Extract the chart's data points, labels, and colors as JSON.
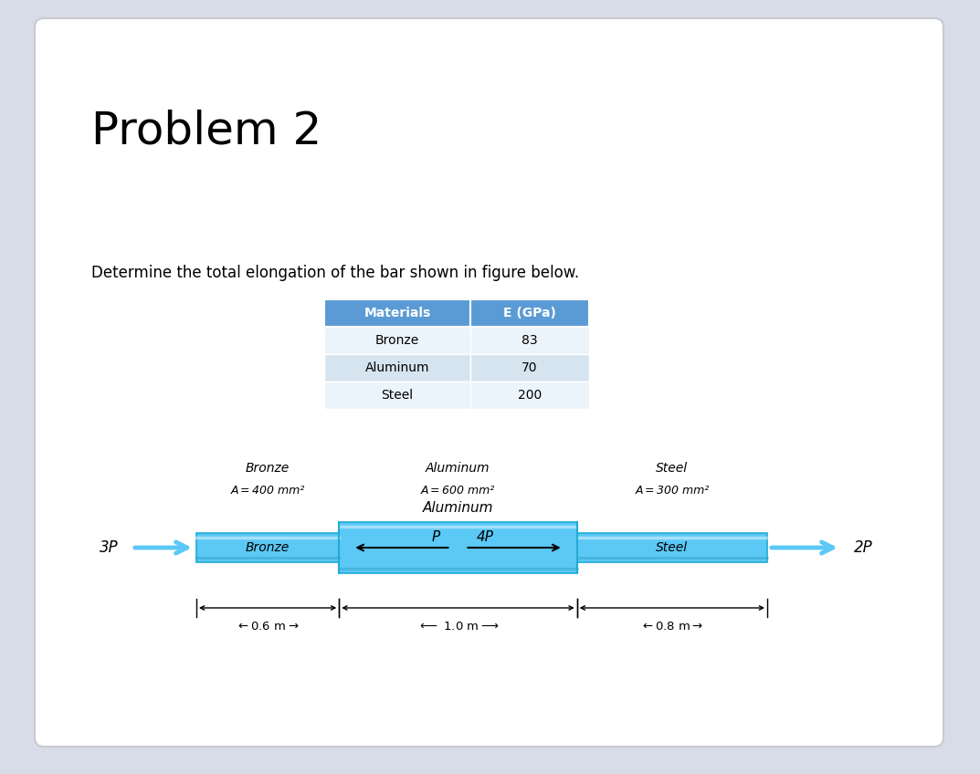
{
  "title": "Problem 2",
  "subtitle": "Determine the total elongation of the bar shown in figure below.",
  "table_headers": [
    "Materials",
    "E (GPa)"
  ],
  "table_rows": [
    [
      "Bronze",
      "83"
    ],
    [
      "Aluminum",
      "70"
    ],
    [
      "Steel",
      "200"
    ]
  ],
  "table_header_bg": "#5B9BD5",
  "table_row_bg_even": "#D6E4F0",
  "table_row_bg_odd": "#EBF4FA",
  "bar_face": "#5BC8F5",
  "bar_edge": "#1EACD6",
  "background_color": "#D8DCE8",
  "card_color": "#FFFFFF",
  "segment_labels": [
    "Bronze",
    "Aluminum",
    "Steel"
  ],
  "segment_A_labels": [
    "A = 400 mm²",
    "A = 600 mm²",
    "A = 300 mm²"
  ],
  "segment_lengths_labels": [
    "0.6 m",
    "1.0 m",
    "0.8 m"
  ],
  "segment_lengths": [
    0.6,
    1.0,
    0.8
  ],
  "force_left_label": "3P",
  "force_right_label": "2P",
  "inner_force_left": "P",
  "inner_force_right": "4P"
}
